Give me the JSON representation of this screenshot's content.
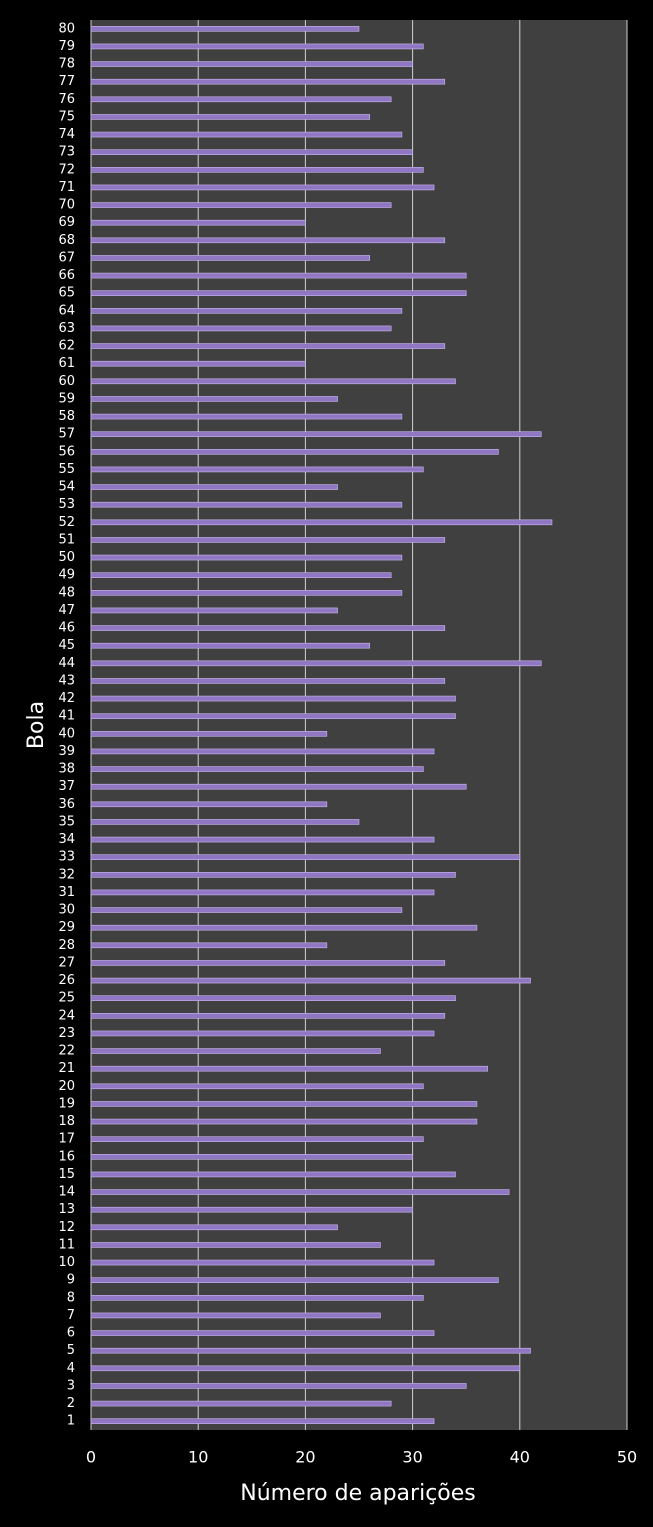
{
  "chart_data": {
    "type": "bar",
    "orientation": "horizontal",
    "x_label": "Número de aparições",
    "y_label": "Bola",
    "categories": [
      "1",
      "2",
      "3",
      "4",
      "5",
      "6",
      "7",
      "8",
      "9",
      "10",
      "11",
      "12",
      "13",
      "14",
      "15",
      "16",
      "17",
      "18",
      "19",
      "20",
      "21",
      "22",
      "23",
      "24",
      "25",
      "26",
      "27",
      "28",
      "29",
      "30",
      "31",
      "32",
      "33",
      "34",
      "35",
      "36",
      "37",
      "38",
      "39",
      "40",
      "41",
      "42",
      "43",
      "44",
      "45",
      "46",
      "47",
      "48",
      "49",
      "50",
      "51",
      "52",
      "53",
      "54",
      "55",
      "56",
      "57",
      "58",
      "59",
      "60",
      "61",
      "62",
      "63",
      "64",
      "65",
      "66",
      "67",
      "68",
      "69",
      "70",
      "71",
      "72",
      "73",
      "74",
      "75",
      "76",
      "77",
      "78",
      "79",
      "80"
    ],
    "values": [
      32,
      28,
      35,
      40,
      41,
      32,
      27,
      31,
      38,
      32,
      27,
      23,
      30,
      39,
      34,
      30,
      31,
      36,
      36,
      31,
      37,
      27,
      32,
      33,
      34,
      41,
      33,
      22,
      36,
      29,
      32,
      34,
      40,
      32,
      25,
      22,
      35,
      31,
      32,
      22,
      34,
      34,
      33,
      42,
      26,
      33,
      23,
      29,
      28,
      29,
      33,
      43,
      29,
      23,
      31,
      38,
      42,
      29,
      23,
      34,
      20,
      33,
      28,
      29,
      35,
      35,
      26,
      33,
      20,
      28,
      32,
      31,
      30,
      29,
      26,
      28,
      33,
      30,
      31,
      25
    ],
    "color": "#9077c4",
    "xlim": [
      0,
      50
    ],
    "xticks": [
      0,
      10,
      20,
      30,
      40,
      50
    ],
    "grid": true
  }
}
